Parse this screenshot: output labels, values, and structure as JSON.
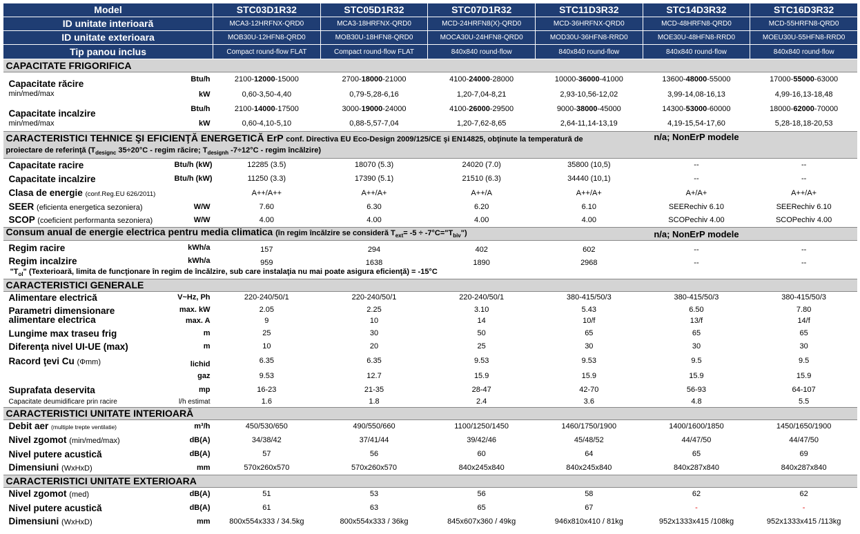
{
  "header": {
    "model_label": "Model",
    "models": [
      "STC03D1R32",
      "STC05D1R32",
      "STC07D1R32",
      "STC11D3R32",
      "STC14D3R32",
      "STC16D3R32"
    ],
    "indoor_label": "ID unitate interioară",
    "indoor": [
      "MCA3-12HRFNX-QRD0",
      "MCA3-18HRFNX-QRD0",
      "MCD-24HRFN8(X)-QRD0",
      "MCD-36HRFNX-QRD0",
      "MCD-48HRFN8-QRD0",
      "MCD-55HRFN8-QRD0"
    ],
    "outdoor_label": "ID unitate exterioara",
    "outdoor": [
      "MOB30U-12HFN8-QRD0",
      "MOB30U-18HFN8-QRD0",
      "MOCA30U-24HFN8-QRD0",
      "MOD30U-36HFN8-RRD0",
      "MOE30U-48HFN8-RRD0",
      "MOEU30U-55HFN8-RRD0"
    ],
    "panel_label": "Tip panou inclus",
    "panel": [
      "Compact round-flow FLAT",
      "Compact round-flow FLAT",
      "840x840 round-flow",
      "840x840 round-flow",
      "840x840 round-flow",
      "840x840 round-flow"
    ]
  },
  "sec_capacity": {
    "title": "CAPACITATE FRIGORIFICA",
    "cool_label": "Capacitate răcire",
    "cool_sub": "min/med/max",
    "cool_btu_unit": "Btu/h",
    "cool_btu": [
      [
        "2100-",
        "12000",
        "-15000"
      ],
      [
        "2700-",
        "18000",
        "-21000"
      ],
      [
        "4100-",
        "24000",
        "-28000"
      ],
      [
        "10000-",
        "36000",
        "-41000"
      ],
      [
        "13600-",
        "48000",
        "-55000"
      ],
      [
        "17000-",
        "55000",
        "-63000"
      ]
    ],
    "cool_kw_unit": "kW",
    "cool_kw": [
      "0,60-3,50-4,40",
      "0,79-5,28-6,16",
      "1,20-7,04-8,21",
      "2,93-10,56-12,02",
      "3,99-14,08-16,13",
      "4,99-16,13-18,48"
    ],
    "heat_label": "Capacitate incalzire",
    "heat_sub": "min/med/max",
    "heat_btu_unit": "Btu/h",
    "heat_btu": [
      [
        "2100-",
        "14000",
        "-17500"
      ],
      [
        "3000-",
        "19000",
        "-24000"
      ],
      [
        "4100-",
        "26000",
        "-29500"
      ],
      [
        "9000-",
        "38000",
        "-45000"
      ],
      [
        "14300-",
        "53000",
        "-60000"
      ],
      [
        "18000-",
        "62000",
        "-70000"
      ]
    ],
    "heat_kw_unit": "kW",
    "heat_kw": [
      "0,60-4,10-5,10",
      "0,88-5,57-7,04",
      "1,20-7,62-8,65",
      "2,64-11,14-13,19",
      "4,19-15,54-17,60",
      "5,28-18,18-20,53"
    ]
  },
  "sec_erp": {
    "title": "CARACTERISTICI TEHNICE ŞI EFICIENŢĂ ENERGETICĂ ErP",
    "title_note1": "conf. Directiva EU Eco-Design 2009/125/CE şi EN14825, obţinute la temperatură de",
    "title_note2a": "proiectare de referinţă (T",
    "title_sub1": "designc",
    "title_note2b": " 35÷20°C - regim răcire; T",
    "title_sub2": "designh",
    "title_note2c": " -7÷12°C - regim încălzire)",
    "nonerp": "n/a; NonErP modele",
    "cool_label": "Capacitate racire",
    "cool_unit": "Btu/h (kW)",
    "cool": [
      "12285 (3.5)",
      "18070 (5.3)",
      "24020 (7.0)",
      "35800 (10,5)",
      "--",
      "--"
    ],
    "heat_label": "Capacitate incalzire",
    "heat_unit": "Btu/h (kW)",
    "heat": [
      "11250 (3.3)",
      "17390 (5.1)",
      "21510 (6.3)",
      "34440 (10,1)",
      "--",
      "--"
    ],
    "class_label": "Clasa de energie",
    "class_note": "(conf.Reg.EU 626/2011)",
    "class": [
      "A++/A++",
      "A++/A+",
      "A++/A",
      "A++/A+",
      "A+/A+",
      "A++/A+"
    ],
    "seer_label": "SEER",
    "seer_note": "(eficienta energetica sezoniera)",
    "seer_unit": "W/W",
    "seer": [
      "7.60",
      "6.30",
      "6.20",
      "6.10",
      "SEERechiv 6.10",
      "SEERechiv 6.10"
    ],
    "scop_label": "SCOP",
    "scop_note": "(coeficient performanta sezoniera)",
    "scop_unit": "W/W",
    "scop": [
      "4.00",
      "4.00",
      "4.00",
      "4.00",
      "SCOPechiv 4.00",
      "SCOPechiv 4.00"
    ]
  },
  "sec_consum": {
    "title": "Consum anual de energie electrica pentru media climatica",
    "title_note_a": "(în regim încălzire se consideră T",
    "title_note_sub1": "ext",
    "title_note_b": "= -5 ÷ -7°C=\"T",
    "title_note_sub2": "biv",
    "title_note_c": "\")",
    "nonerp": "n/a; NonErP modele",
    "cool_label": "Regim racire",
    "cool_unit": "kWh/a",
    "cool": [
      "157",
      "294",
      "402",
      "602",
      "--",
      "--"
    ],
    "heat_label": "Regim incalzire",
    "heat_unit": "kWh/a",
    "heat": [
      "959",
      "1638",
      "1890",
      "2968",
      "--",
      "--"
    ],
    "note_a": "\"T",
    "note_sub": "ol",
    "note_b": "\" (Texterioară, limita de funcţionare în regim de încălzire, sub care instalaţia nu mai poate asigura eficienţă) = -15°C"
  },
  "sec_general": {
    "title": "CARACTERISTICI GENERALE",
    "power_label": "Alimentare electrică",
    "power_unit": "V~Hz, Ph",
    "power": [
      "220-240/50/1",
      "220-240/50/1",
      "220-240/50/1",
      "380-415/50/3",
      "380-415/50/3",
      "380-415/50/3"
    ],
    "dim_label1": "Parametri dimensionare",
    "dim_label2": "alimentare electrica",
    "kw_unit": "max. kW",
    "kw": [
      "2.05",
      "2.25",
      "3.10",
      "5.43",
      "6.50",
      "7.80"
    ],
    "a_unit": "max. A",
    "a": [
      "9",
      "10",
      "14",
      "10/f",
      "13/f",
      "14/f"
    ],
    "pipe_label": "Lungime max traseu frig",
    "pipe_unit": "m",
    "pipe": [
      "25",
      "30",
      "50",
      "65",
      "65",
      "65"
    ],
    "level_label": "Diferenţa nivel UI-UE (max)",
    "level_unit": "m",
    "level": [
      "10",
      "20",
      "25",
      "30",
      "30",
      "30"
    ],
    "cu_label": "Racord ţevi Cu",
    "cu_note": "(Φmm)",
    "liq_unit": "lichid",
    "liq": [
      "6.35",
      "6.35",
      "9.53",
      "9.53",
      "9.5",
      "9.5"
    ],
    "gas_unit": "gaz",
    "gas": [
      "9.53",
      "12.7",
      "15.9",
      "15.9",
      "15.9",
      "15.9"
    ],
    "area_label": "Suprafata deservita",
    "area_unit": "mp",
    "area": [
      "16-23",
      "21-35",
      "28-47",
      "42-70",
      "56-93",
      "64-107"
    ],
    "dehum_label": "Capacitate deumidificare prin racire",
    "dehum_unit": "l/h estimat",
    "dehum": [
      "1.6",
      "1.8",
      "2.4",
      "3.6",
      "4.8",
      "5.5"
    ]
  },
  "sec_indoor": {
    "title": "CARACTERISTICI UNITATE INTERIOARĂ",
    "flow_label": "Debit aer",
    "flow_note": "(multiple trepte ventilatie)",
    "flow_unit": "m³/h",
    "flow": [
      "450/530/650",
      "490/550/660",
      "1100/1250/1450",
      "1460/1750/1900",
      "1400/1600/1850",
      "1450/1650/1900"
    ],
    "noise_label": "Nivel zgomot",
    "noise_note": "(min/med/max)",
    "noise_unit": "dB(A)",
    "noise": [
      "34/38/42",
      "37/41/44",
      "39/42/46",
      "45/48/52",
      "44/47/50",
      "44/47/50"
    ],
    "power_label": "Nivel putere acustică",
    "power_unit": "dB(A)",
    "power": [
      "57",
      "56",
      "60",
      "64",
      "65",
      "69"
    ],
    "dim_label": "Dimensiuni",
    "dim_note": "(WxHxD)",
    "dim_unit": "mm",
    "dim": [
      "570x260x570",
      "570x260x570",
      "840x245x840",
      "840x245x840",
      "840x287x840",
      "840x287x840"
    ]
  },
  "sec_outdoor": {
    "title": "CARACTERISTICI UNITATE EXTERIOARA",
    "noise_label": "Nivel zgomot",
    "noise_note": "(med)",
    "noise_unit": "dB(A)",
    "noise": [
      "51",
      "53",
      "56",
      "58",
      "62",
      "62"
    ],
    "power_label": "Nivel putere acustică",
    "power_unit": "dB(A)",
    "power": [
      "61",
      "63",
      "65",
      "67",
      "-",
      "-"
    ],
    "dim_label": "Dimensiuni",
    "dim_note": "(WxHxD)",
    "dim_unit": "mm",
    "dim": [
      "800x554x333 / 34.5kg",
      "800x554x333 / 36kg",
      "845x607x360 / 49kg",
      "946x810x410 / 81kg",
      "952x1333x415 /108kg",
      "952x1333x415 /113kg"
    ]
  },
  "colors": {
    "header_bg": "#1f3d73",
    "section_bg": "#d4d4d4",
    "dash_red": "#e00000"
  }
}
